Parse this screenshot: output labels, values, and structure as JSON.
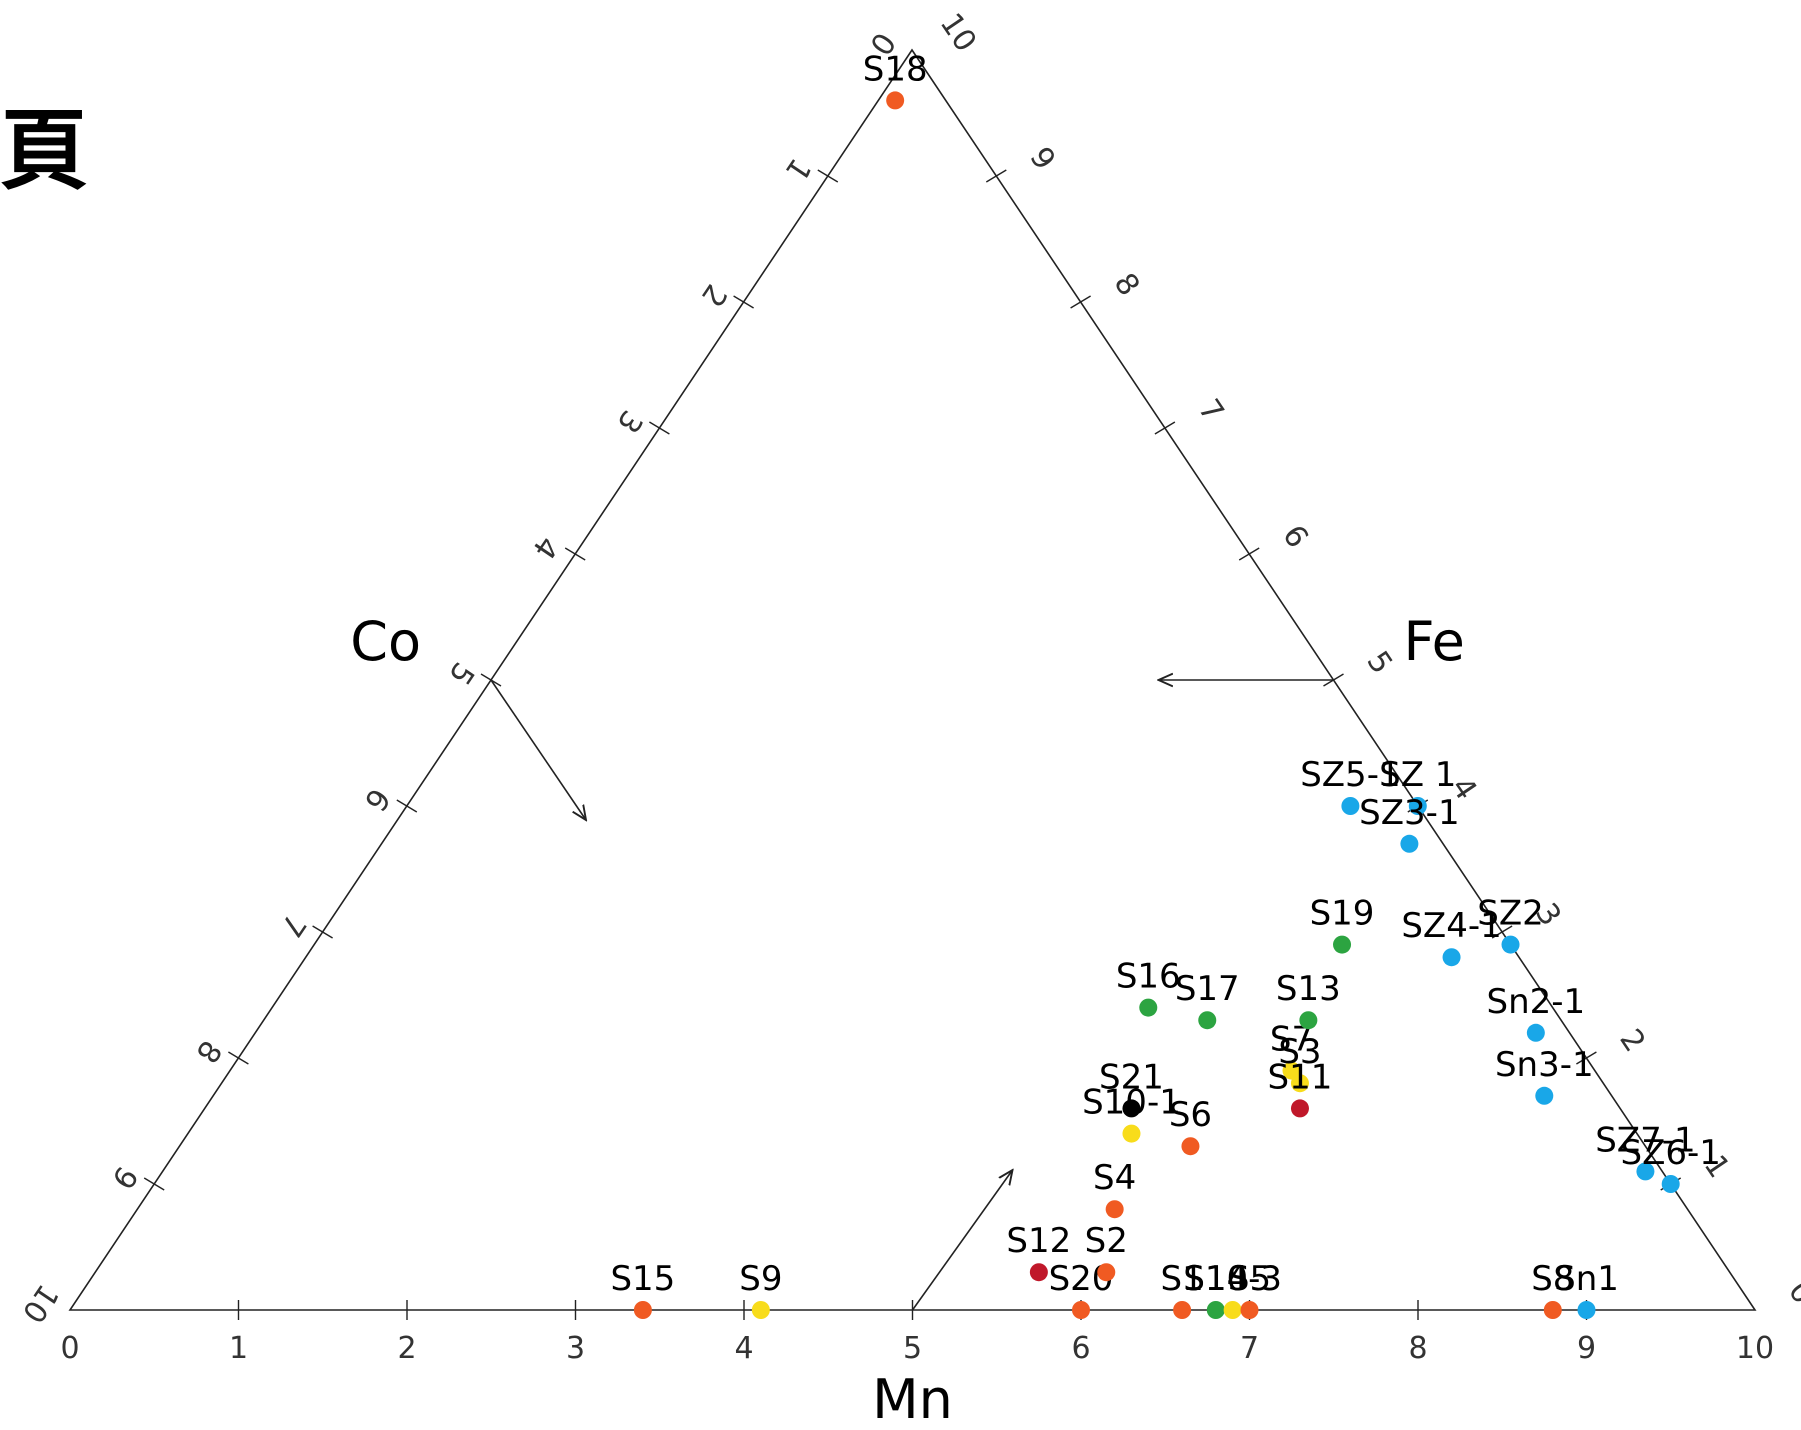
{
  "header": {
    "cropped_char": "頁"
  },
  "chart_data": {
    "type": "scatter",
    "subtype": "ternary",
    "axis_labels": {
      "left": "Co",
      "right": "Fe",
      "bottom": "Mn"
    },
    "tick_labels": [
      "0",
      "1",
      "2",
      "3",
      "4",
      "5",
      "6",
      "7",
      "8",
      "9",
      "10"
    ],
    "colors": {
      "orange": "#f05a22",
      "yellow": "#f8dc1b",
      "green": "#2ca441",
      "blue": "#19a7e8",
      "red": "#c0182a",
      "black": "#000000"
    },
    "points": [
      {
        "label": "S18",
        "mn": 0.1,
        "fe": 9.6,
        "co": 0.3,
        "color": "orange"
      },
      {
        "label": "S15",
        "mn": 3.4,
        "fe": 0.0,
        "co": 6.6,
        "color": "orange"
      },
      {
        "label": "S12",
        "mn": 5.6,
        "fe": 0.3,
        "co": 4.1,
        "color": "red"
      },
      {
        "label": "S20",
        "mn": 6.0,
        "fe": 0.0,
        "co": 4.0,
        "color": "orange"
      },
      {
        "label": "S4",
        "mn": 5.8,
        "fe": 0.8,
        "co": 3.4,
        "color": "orange"
      },
      {
        "label": "S10-1",
        "mn": 5.6,
        "fe": 1.4,
        "co": 3.0,
        "color": "yellow"
      },
      {
        "label": "S21",
        "mn": 5.5,
        "fe": 1.6,
        "co": 2.9,
        "color": "black"
      },
      {
        "label": "S16",
        "mn": 5.2,
        "fe": 2.4,
        "co": 2.4,
        "color": "green"
      },
      {
        "label": "S17",
        "mn": 5.6,
        "fe": 2.3,
        "co": 2.1,
        "color": "green"
      },
      {
        "label": "S7",
        "mn": 6.3,
        "fe": 1.9,
        "co": 1.8,
        "color": "yellow"
      },
      {
        "label": "S13",
        "mn": 6.2,
        "fe": 2.3,
        "co": 1.5,
        "color": "green"
      },
      {
        "label": "S19",
        "mn": 6.1,
        "fe": 2.9,
        "co": 1.0,
        "color": "green"
      },
      {
        "label": "S6",
        "mn": 6.0,
        "fe": 1.3,
        "co": 2.7,
        "color": "orange"
      },
      {
        "label": "S3",
        "mn": 6.4,
        "fe": 1.8,
        "co": 1.8,
        "color": "yellow"
      },
      {
        "label": "S11",
        "mn": 6.5,
        "fe": 1.6,
        "co": 1.9,
        "color": "red"
      },
      {
        "label": "S2",
        "mn": 6.0,
        "fe": 0.3,
        "co": 3.7,
        "color": "orange"
      },
      {
        "label": "S1",
        "mn": 6.6,
        "fe": 0.0,
        "co": 3.4,
        "color": "orange"
      },
      {
        "label": "S14",
        "mn": 6.8,
        "fe": 0.0,
        "co": 3.2,
        "color": "green"
      },
      {
        "label": "S10-3",
        "mn": 6.9,
        "fe": 0.0,
        "co": 3.1,
        "color": "yellow"
      },
      {
        "label": "S5",
        "mn": 7.0,
        "fe": 0.0,
        "co": 3.0,
        "color": "orange"
      },
      {
        "label": "S9",
        "mn": 4.1,
        "fe": 0.0,
        "co": 5.9,
        "color": "yellow"
      },
      {
        "label": "S8",
        "mn": 8.8,
        "fe": 0.0,
        "co": 1.2,
        "color": "orange"
      },
      {
        "label": "Sn1",
        "mn": 9.0,
        "fe": 0.0,
        "co": 1.0,
        "color": "blue"
      },
      {
        "label": "SZ5-1",
        "mn": 5.6,
        "fe": 4.0,
        "co": 0.4,
        "color": "blue"
      },
      {
        "label": "SZ 1",
        "mn": 6.0,
        "fe": 4.0,
        "co": 0.0,
        "color": "blue"
      },
      {
        "label": "SZ3-1",
        "mn": 6.1,
        "fe": 3.7,
        "co": 0.2,
        "color": "blue"
      },
      {
        "label": "SZ2",
        "mn": 7.1,
        "fe": 2.9,
        "co": 0.0,
        "color": "blue"
      },
      {
        "label": "SZ4-1",
        "mn": 6.8,
        "fe": 2.8,
        "co": 0.4,
        "color": "blue"
      },
      {
        "label": "Sn2-1",
        "mn": 7.6,
        "fe": 2.2,
        "co": 0.2,
        "color": "blue"
      },
      {
        "label": "Sn3-1",
        "mn": 7.9,
        "fe": 1.7,
        "co": 0.4,
        "color": "blue"
      },
      {
        "label": "SZ7-1",
        "mn": 8.8,
        "fe": 1.1,
        "co": 0.1,
        "color": "blue"
      },
      {
        "label": "SZ6-1",
        "mn": 9.0,
        "fe": 1.0,
        "co": 0.0,
        "color": "blue"
      }
    ]
  }
}
